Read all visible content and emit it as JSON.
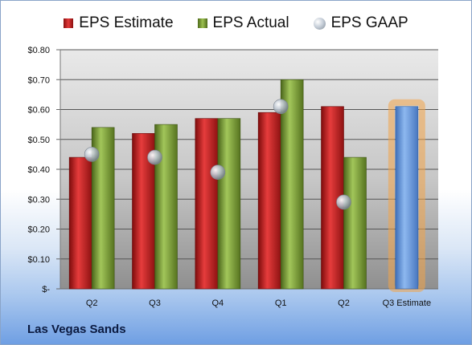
{
  "chart_data": {
    "type": "bar",
    "categories": [
      "Q2",
      "Q3",
      "Q4",
      "Q1",
      "Q2",
      "Q3 Estimate"
    ],
    "series": [
      {
        "name": "EPS Estimate",
        "values": [
          0.44,
          0.52,
          0.57,
          0.59,
          0.61,
          null
        ]
      },
      {
        "name": "EPS Actual",
        "values": [
          0.54,
          0.55,
          0.57,
          0.7,
          0.44,
          null
        ]
      },
      {
        "name": "EPS GAAP",
        "values": [
          0.45,
          0.44,
          0.39,
          0.61,
          0.29,
          null
        ]
      },
      {
        "name": "",
        "values": [
          null,
          null,
          null,
          null,
          null,
          0.61
        ]
      }
    ],
    "ylim": [
      0,
      0.8
    ],
    "yticks": [
      0,
      0.1,
      0.2,
      0.3,
      0.4,
      0.5,
      0.6,
      0.7,
      0.8
    ],
    "ytick_labels": [
      "$-",
      "$0.10",
      "$0.20",
      "$0.30",
      "$0.40",
      "$0.50",
      "$0.60",
      "$0.70",
      "$0.80"
    ],
    "legend_position": "top",
    "grid": true,
    "colors": {
      "estimate": "#d42a2a",
      "actual": "#8cb43f",
      "gaap": "#b8c0c8",
      "projection": "#6f9fe0",
      "projection_glow": "#f2a448"
    },
    "company": "Las Vegas Sands"
  }
}
